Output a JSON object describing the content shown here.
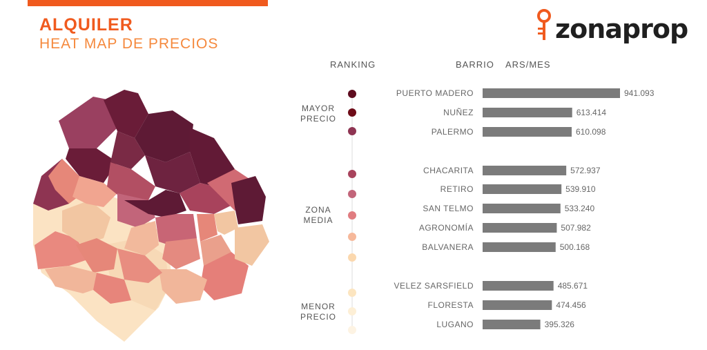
{
  "header": {
    "title": "ALQUILER",
    "subtitle": "HEAT MAP DE PRECIOS",
    "logo_text": "zonaprop"
  },
  "columns": {
    "ranking": "RANKING",
    "barrio": "BARRIO",
    "ars_mes": "ARS/MES"
  },
  "groups": [
    {
      "line1": "MAYOR",
      "line2": "PRECIO"
    },
    {
      "line1": "ZONA",
      "line2": "MEDIA"
    },
    {
      "line1": "MENOR",
      "line2": "PRECIO"
    }
  ],
  "colors": {
    "accent": "#f05a1e",
    "accent_light": "#f5893d",
    "bar": "#7b7b7b"
  },
  "chart_data": {
    "type": "bar",
    "orientation": "horizontal",
    "categories": [
      "PUERTO MADERO",
      "NUÑEZ",
      "PALERMO",
      "CHACARITA",
      "RETIRO",
      "SAN TELMO",
      "AGRONOMÍA",
      "BALVANERA",
      "VELEZ SARSFIELD",
      "FLORESTA",
      "LUGANO"
    ],
    "values": [
      941093,
      613414,
      610098,
      572937,
      539910,
      533240,
      507982,
      500168,
      485671,
      474456,
      395326
    ],
    "value_labels": [
      "941.093",
      "613.414",
      "610.098",
      "572.937",
      "539.910",
      "533.240",
      "507.982",
      "500.168",
      "485.671",
      "474.456",
      "395.326"
    ],
    "dot_colors": [
      "#5e0c1f",
      "#6e0c18",
      "#8e3452",
      "#a8435c",
      "#c2657a",
      "#e07c80",
      "#ef9b8c",
      "#f6b89a",
      "#fbd8ae",
      "#fce5c0",
      "#fdefd6"
    ],
    "legend_dots": [
      "#5e0c1f",
      "#6e0c18",
      "#8e3452",
      "#a8435c",
      "#c2657a",
      "#e07c80",
      "#f6b89a",
      "#fbd8ae",
      "#fce5c0",
      "#fdefd6",
      "#fdf3e3"
    ]
  }
}
